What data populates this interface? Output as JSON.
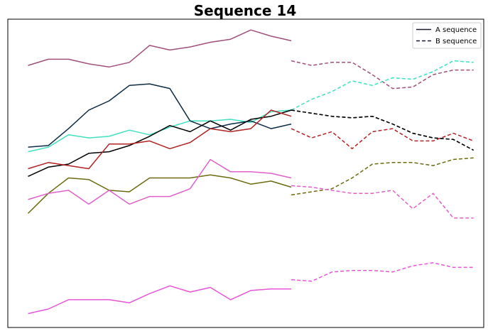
{
  "chart_data": {
    "type": "line",
    "title": "Sequence 14",
    "xlabel": "",
    "ylabel": "",
    "grid": false,
    "axis_ticks": false,
    "xlim": [
      -1,
      22.5
    ],
    "ylim": [
      0,
      100
    ],
    "legend": {
      "placement": "top-right",
      "entries": [
        {
          "label": "A sequence",
          "style": "solid",
          "color": "#1a1a2e"
        },
        {
          "label": "B sequence",
          "style": "dashed",
          "color": "#1a1a2e"
        }
      ]
    },
    "series": [
      {
        "color": "#a0507a",
        "a_x": [
          0,
          1,
          2,
          3,
          4,
          5,
          6,
          7,
          8,
          9,
          10,
          11,
          12,
          13
        ],
        "a_y": [
          85.0,
          87.0,
          87.0,
          85.5,
          84.5,
          86.0,
          91.5,
          90.0,
          91.0,
          92.5,
          93.5,
          96.5,
          94.5,
          93.0
        ],
        "b_x": [
          13,
          14,
          15,
          16,
          17,
          18,
          19,
          20,
          21,
          22
        ],
        "b_y": [
          86.5,
          85.0,
          86.0,
          86.0,
          82.0,
          77.5,
          78.0,
          82.0,
          83.5,
          83.5
        ]
      },
      {
        "color": "#40e0c0",
        "a_x": [
          0,
          1,
          2,
          3,
          4,
          5,
          6,
          7,
          8,
          9,
          10,
          11,
          12,
          13
        ],
        "a_y": [
          57.0,
          58.5,
          62.5,
          61.5,
          62.0,
          64.0,
          62.5,
          65.0,
          67.0,
          67.0,
          67.5,
          66.5,
          70.0,
          70.5
        ],
        "b_x": [
          13,
          14,
          15,
          16,
          17,
          18,
          19,
          20,
          21,
          22
        ],
        "b_y": [
          70.5,
          74.0,
          76.5,
          80.0,
          78.5,
          81.0,
          80.5,
          83.0,
          86.5,
          86.0
        ]
      },
      {
        "color": "#0d2b45",
        "a_x": [
          0,
          1,
          2,
          3,
          4,
          5,
          6,
          7,
          8,
          9,
          10,
          11,
          12,
          13
        ],
        "a_y": [
          58.5,
          59.0,
          64.5,
          70.5,
          73.5,
          78.5,
          79.0,
          77.5,
          67.0,
          64.5,
          66.0,
          67.0,
          64.5,
          66.0
        ],
        "b_x": [
          13,
          14,
          15,
          16,
          17,
          18,
          19,
          20,
          21,
          22
        ],
        "b_y": [
          70.5,
          69.5,
          68.5,
          68.0,
          68.5,
          66.0,
          63.0,
          61.5,
          61.0,
          57.5
        ]
      },
      {
        "color": "#000000",
        "a_x": [
          0,
          1,
          2,
          3,
          4,
          5,
          6,
          7,
          8,
          9,
          10,
          11,
          12,
          13
        ],
        "a_y": [
          49.0,
          52.0,
          53.0,
          56.5,
          57.0,
          59.0,
          62.0,
          65.5,
          63.5,
          67.0,
          64.0,
          67.5,
          68.5,
          70.5
        ],
        "b_x": [
          13,
          14,
          15,
          16,
          17,
          18,
          19,
          20,
          21,
          22
        ],
        "b_y": [
          70.5,
          69.5,
          68.5,
          68.0,
          68.5,
          66.0,
          63.0,
          61.5,
          61.0,
          57.5
        ]
      },
      {
        "color": "#b22222",
        "a_x": [
          0,
          1,
          2,
          3,
          4,
          5,
          6,
          7,
          8,
          9,
          10,
          11,
          12,
          13
        ],
        "a_y": [
          51.5,
          53.5,
          52.5,
          51.5,
          59.5,
          59.5,
          60.5,
          58.0,
          60.0,
          64.5,
          63.5,
          64.5,
          70.5,
          68.5
        ],
        "b_x": [
          13,
          14,
          15,
          16,
          17,
          18,
          19,
          20,
          21,
          22
        ],
        "b_y": [
          64.5,
          61.5,
          63.5,
          58.0,
          63.5,
          64.5,
          60.5,
          60.5,
          63.0,
          60.5
        ]
      },
      {
        "color": "#6b6b10",
        "a_x": [
          0,
          1,
          2,
          3,
          4,
          5,
          6,
          7,
          8,
          9,
          10,
          11,
          12,
          13
        ],
        "a_y": [
          37.0,
          43.5,
          48.5,
          48.0,
          44.5,
          44.0,
          48.5,
          48.5,
          48.5,
          49.5,
          48.5,
          46.5,
          47.5,
          45.5
        ],
        "b_x": [
          13,
          14,
          15,
          16,
          17,
          18,
          19,
          20,
          21,
          22
        ],
        "b_y": [
          43.0,
          44.0,
          45.0,
          48.5,
          53.0,
          53.5,
          53.5,
          52.5,
          54.5,
          55.0
        ]
      },
      {
        "color": "#e060c8",
        "a_x": [
          0,
          1,
          2,
          3,
          4,
          5,
          6,
          7,
          8,
          9,
          10,
          11,
          12,
          13
        ],
        "a_y": [
          41.5,
          43.5,
          44.5,
          40.0,
          44.5,
          40.0,
          42.5,
          42.5,
          45.0,
          54.5,
          50.5,
          50.5,
          50.0,
          48.5
        ],
        "b_x": [
          13,
          14,
          15,
          16,
          17,
          18,
          19,
          20,
          21,
          22
        ],
        "b_y": [
          46.0,
          45.5,
          44.5,
          43.5,
          43.5,
          44.5,
          38.5,
          43.5,
          35.5,
          35.5
        ]
      },
      {
        "color": "#e855d8",
        "a_x": [
          0,
          1,
          2,
          3,
          4,
          5,
          6,
          7,
          8,
          9,
          10,
          11,
          12,
          13
        ],
        "a_y": [
          4.5,
          6.0,
          9.0,
          9.0,
          9.0,
          8.0,
          11.0,
          13.5,
          11.5,
          13.0,
          9.0,
          12.0,
          12.5,
          12.5
        ],
        "b_x": [
          13,
          14,
          15,
          16,
          17,
          18,
          19,
          20,
          21,
          22
        ],
        "b_y": [
          15.5,
          15.0,
          18.0,
          18.5,
          18.5,
          18.0,
          20.0,
          21.0,
          19.5,
          19.5
        ]
      }
    ]
  }
}
